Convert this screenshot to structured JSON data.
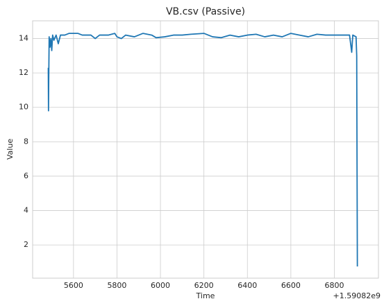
{
  "chart_data": {
    "type": "line",
    "title": "VB.csv (Passive)",
    "xlabel": "Time",
    "ylabel": "Value",
    "annotations": [
      "+1.59082e9"
    ],
    "x": [
      5484,
      5485,
      5486,
      5488,
      5492,
      5496,
      5500,
      5504,
      5510,
      5520,
      5530,
      5540,
      5560,
      5580,
      5620,
      5640,
      5680,
      5700,
      5720,
      5760,
      5790,
      5800,
      5820,
      5840,
      5880,
      5920,
      5960,
      5980,
      6020,
      6060,
      6100,
      6140,
      6200,
      6240,
      6280,
      6320,
      6360,
      6400,
      6440,
      6480,
      6520,
      6560,
      6600,
      6640,
      6680,
      6720,
      6760,
      6800,
      6840,
      6870,
      6880,
      6885,
      6900,
      6903,
      6906
    ],
    "series": [
      {
        "name": "VB",
        "color": "#1f77b4",
        "values": [
          12.3,
          9.8,
          11.5,
          14.1,
          13.5,
          14.0,
          13.3,
          14.2,
          13.9,
          14.2,
          13.7,
          14.2,
          14.2,
          14.3,
          14.3,
          14.2,
          14.2,
          14.0,
          14.2,
          14.2,
          14.3,
          14.1,
          14.0,
          14.2,
          14.1,
          14.3,
          14.2,
          14.05,
          14.1,
          14.2,
          14.2,
          14.25,
          14.3,
          14.1,
          14.05,
          14.2,
          14.1,
          14.2,
          14.25,
          14.1,
          14.2,
          14.1,
          14.3,
          14.2,
          14.1,
          14.25,
          14.2,
          14.2,
          14.2,
          14.2,
          13.2,
          14.2,
          14.1,
          13.0,
          0.75
        ]
      }
    ],
    "xlim": [
      5412,
      7003
    ],
    "xticks": [
      5600,
      5800,
      6000,
      6200,
      6400,
      6600,
      6800
    ],
    "ylim": [
      0.07,
      15.03
    ],
    "yticks": [
      2,
      4,
      6,
      8,
      10,
      12,
      14
    ],
    "grid": true
  }
}
